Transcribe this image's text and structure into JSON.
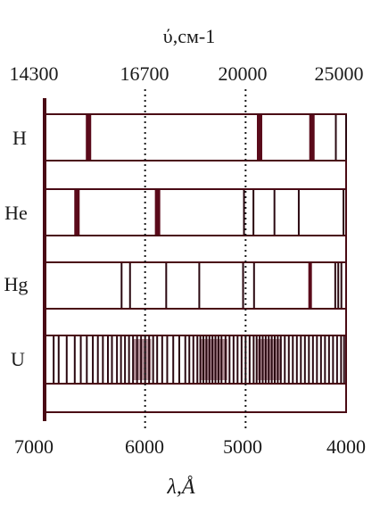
{
  "colors": {
    "ink": "#1a1a1a",
    "frame": "#4a0a14",
    "line": "#2a0810",
    "strong_line": "#5a0a1a",
    "shade": "#7a3a48"
  },
  "top_axis": {
    "title": "ύ,см-1",
    "ticks": [
      "14300",
      "16700",
      "20000",
      "25000"
    ]
  },
  "bottom_axis": {
    "title": "λ,Å",
    "ticks": [
      "7000",
      "6000",
      "5000",
      "4000"
    ],
    "range": [
      7000,
      4000
    ],
    "reference_lines": [
      6000,
      5000
    ]
  },
  "spectra": [
    {
      "label": "H",
      "lines": [
        {
          "w": 6563,
          "strong": true
        },
        {
          "w": 4861,
          "strong": true
        },
        {
          "w": 4340,
          "strong": true
        },
        {
          "w": 4102,
          "strong": false
        },
        {
          "w": 4000,
          "strong": false
        }
      ]
    },
    {
      "label": "He",
      "lines": [
        {
          "w": 6678,
          "strong": true
        },
        {
          "w": 5876,
          "strong": true
        },
        {
          "w": 5016,
          "strong": false
        },
        {
          "w": 4922,
          "strong": false
        },
        {
          "w": 4713,
          "strong": false
        },
        {
          "w": 4471,
          "strong": false
        },
        {
          "w": 4026,
          "strong": false
        }
      ]
    },
    {
      "label": "Hg",
      "lines": [
        {
          "w": 6234,
          "strong": false
        },
        {
          "w": 6150,
          "strong": false
        },
        {
          "w": 5790,
          "strong": false
        },
        {
          "w": 5461,
          "strong": false
        },
        {
          "w": 5025,
          "strong": false
        },
        {
          "w": 4916,
          "strong": false
        },
        {
          "w": 4358,
          "strong": true
        },
        {
          "w": 4108,
          "strong": false
        },
        {
          "w": 4078,
          "strong": false
        },
        {
          "w": 4047,
          "strong": false
        }
      ]
    },
    {
      "label": "U",
      "dense": true,
      "lines": [
        {
          "w": 6910
        },
        {
          "w": 6860
        },
        {
          "w": 6780
        },
        {
          "w": 6700
        },
        {
          "w": 6640
        },
        {
          "w": 6580
        },
        {
          "w": 6520
        },
        {
          "w": 6470
        },
        {
          "w": 6420
        },
        {
          "w": 6370
        },
        {
          "w": 6330
        },
        {
          "w": 6280
        },
        {
          "w": 6240
        },
        {
          "w": 6200
        },
        {
          "w": 6160
        },
        {
          "w": 6120
        },
        {
          "w": 6080
        },
        {
          "w": 6040
        },
        {
          "w": 6000
        },
        {
          "w": 5960
        },
        {
          "w": 5920
        },
        {
          "w": 5880
        },
        {
          "w": 5830
        },
        {
          "w": 5780
        },
        {
          "w": 5720
        },
        {
          "w": 5660
        },
        {
          "w": 5600
        },
        {
          "w": 5560
        },
        {
          "w": 5520
        },
        {
          "w": 5480
        },
        {
          "w": 5450
        },
        {
          "w": 5420
        },
        {
          "w": 5390
        },
        {
          "w": 5360
        },
        {
          "w": 5330
        },
        {
          "w": 5300
        },
        {
          "w": 5270
        },
        {
          "w": 5240
        },
        {
          "w": 5200
        },
        {
          "w": 5160
        },
        {
          "w": 5120
        },
        {
          "w": 5080
        },
        {
          "w": 5040
        },
        {
          "w": 5000
        },
        {
          "w": 4960
        },
        {
          "w": 4920
        },
        {
          "w": 4890
        },
        {
          "w": 4860
        },
        {
          "w": 4830
        },
        {
          "w": 4800
        },
        {
          "w": 4770
        },
        {
          "w": 4740
        },
        {
          "w": 4710
        },
        {
          "w": 4680
        },
        {
          "w": 4650
        },
        {
          "w": 4610
        },
        {
          "w": 4570
        },
        {
          "w": 4530
        },
        {
          "w": 4490
        },
        {
          "w": 4450
        },
        {
          "w": 4410
        },
        {
          "w": 4370
        },
        {
          "w": 4330
        },
        {
          "w": 4290
        },
        {
          "w": 4250
        },
        {
          "w": 4210
        },
        {
          "w": 4170
        },
        {
          "w": 4130
        },
        {
          "w": 4090
        },
        {
          "w": 4050
        },
        {
          "w": 4020
        }
      ],
      "shaded_regions": [
        [
          6120,
          5940
        ],
        [
          5460,
          5180
        ],
        [
          4880,
          4640
        ]
      ]
    }
  ]
}
